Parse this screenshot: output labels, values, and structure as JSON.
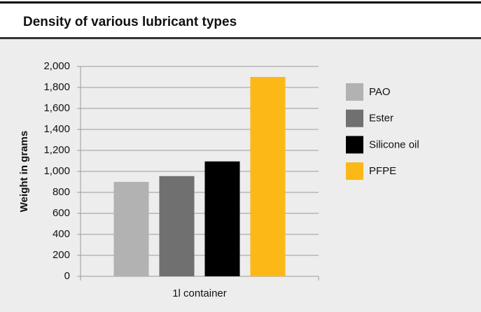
{
  "chart_data": {
    "type": "bar",
    "title": "Density of various lubricant types",
    "y_label": "Weight in grams",
    "categories": [
      "1l container"
    ],
    "series": [
      {
        "name": "PAO",
        "color": "#b2b2b2",
        "values": [
          900
        ]
      },
      {
        "name": "Ester",
        "color": "#707070",
        "values": [
          955
        ]
      },
      {
        "name": "Silicone oil",
        "color": "#000000",
        "values": [
          1095
        ]
      },
      {
        "name": "PFPE",
        "color": "#fbb817",
        "values": [
          1900
        ]
      }
    ],
    "ylim": [
      0,
      2000
    ],
    "yticks": [
      0,
      200,
      400,
      600,
      800,
      {
        "value": 1000,
        "label": "1,000"
      },
      {
        "value": 1200,
        "label": "1,200"
      },
      {
        "value": 1400,
        "label": "1,400"
      },
      {
        "value": 1600,
        "label": "1,600"
      },
      {
        "value": 1800,
        "label": "1,800"
      },
      {
        "value": 2000,
        "label": "2,000"
      }
    ],
    "grid": true,
    "legend": "right"
  }
}
